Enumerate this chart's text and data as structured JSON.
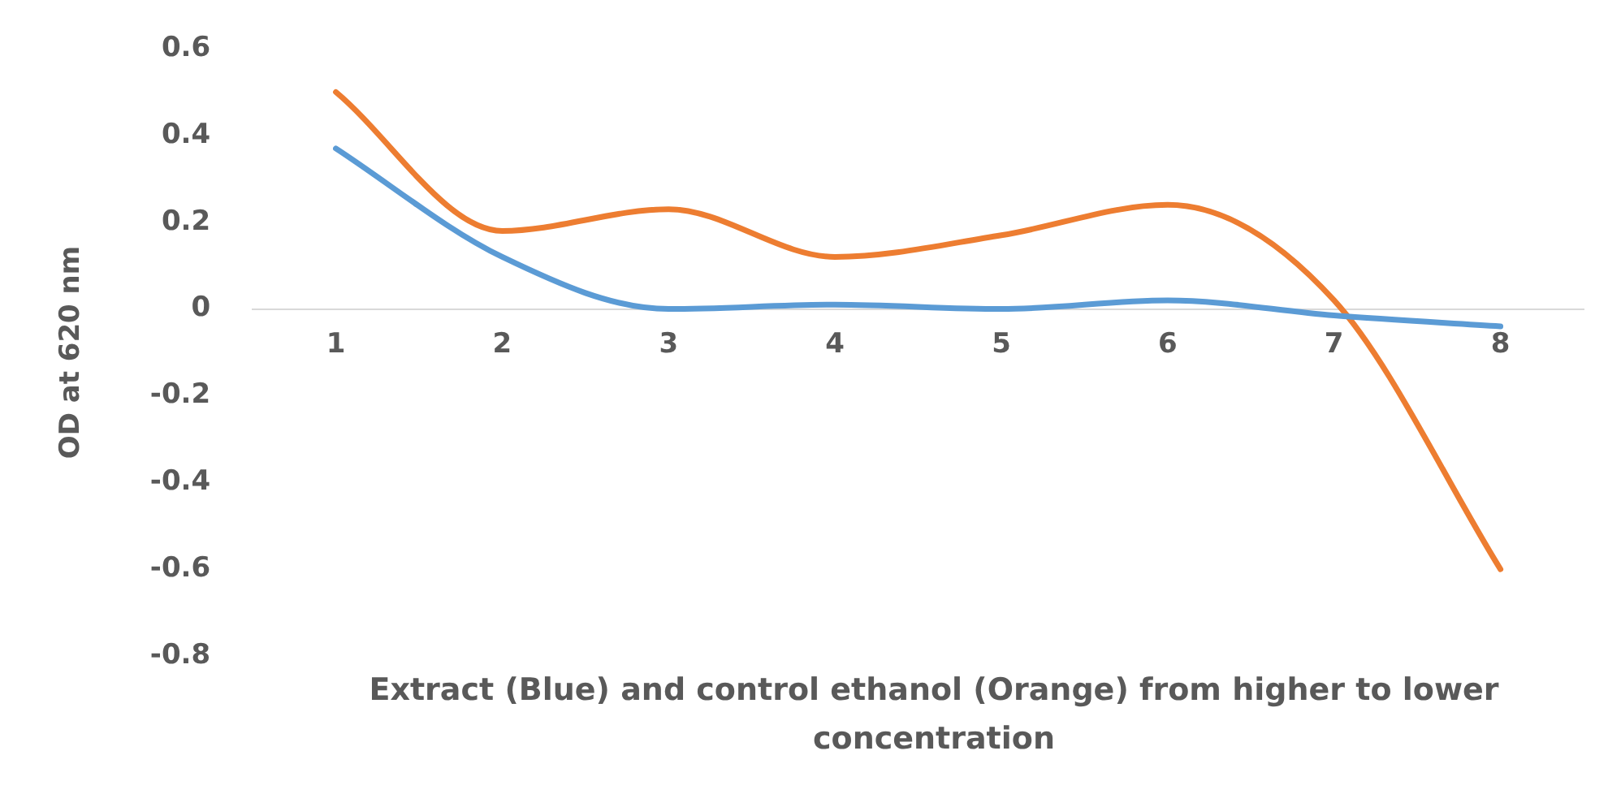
{
  "chart_data": {
    "type": "line",
    "xlabel": "Extract (Blue) and control ethanol (Orange) from higher to lower concentration",
    "ylabel": "OD at 620 nm",
    "categories": [
      "1",
      "2",
      "3",
      "4",
      "5",
      "6",
      "7",
      "8"
    ],
    "series": [
      {
        "color": "#5b9bd5",
        "values": [
          0.37,
          0.12,
          0.0,
          0.01,
          0.0,
          0.02,
          -0.015,
          -0.04
        ]
      },
      {
        "color": "#ed7d31",
        "values": [
          0.5,
          0.18,
          0.23,
          0.12,
          0.17,
          0.24,
          0.02,
          -0.6
        ]
      }
    ],
    "ylim": [
      -0.8,
      0.6
    ],
    "yticks": [
      -0.8,
      -0.6,
      -0.4,
      -0.2,
      0,
      0.2,
      0.4,
      0.6
    ],
    "grid": false,
    "legend": false,
    "marker": "none",
    "line_style": "solid"
  }
}
